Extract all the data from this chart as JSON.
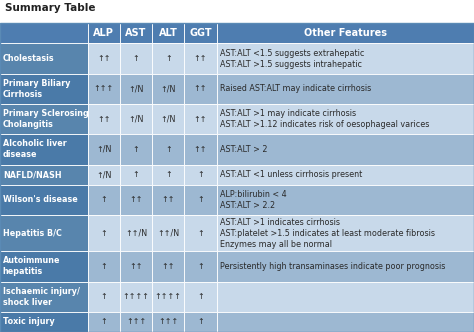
{
  "title": "Summary Table",
  "headers": [
    "",
    "ALP",
    "AST",
    "ALT",
    "GGT",
    "Other Features"
  ],
  "rows": [
    [
      "Cholestasis",
      "↑↑",
      "↑",
      "↑",
      "↑↑",
      "AST:ALT <1.5 suggests extrahepatic\nAST:ALT >1.5 suggests intrahepatic"
    ],
    [
      "Primary Biliary\nCirrhosis",
      "↑↑↑",
      "↑/N",
      "↑/N",
      "↑↑",
      "Raised AST:ALT may indicate cirrhosis"
    ],
    [
      "Primary Sclerosing\nCholangitis",
      "↑↑",
      "↑/N",
      "↑/N",
      "↑↑",
      "AST:ALT >1 may indicate cirrhosis\nAST:ALT >1.12 indicates risk of oesophageal varices"
    ],
    [
      "Alcoholic liver\ndisease",
      "↑/N",
      "↑",
      "↑",
      "↑↑",
      "AST:ALT > 2"
    ],
    [
      "NAFLD/NASH",
      "↑/N",
      "↑",
      "↑",
      "↑",
      "AST:ALT <1 unless cirrhosis present"
    ],
    [
      "Wilson's disease",
      "↑",
      "↑↑",
      "↑↑",
      "↑",
      "ALP:bilirubin < 4\nAST:ALT > 2.2"
    ],
    [
      "Hepatitis B/C",
      "↑",
      "↑↑/N",
      "↑↑/N",
      "↑",
      "AST:ALT >1 indicates cirrhosis\nAST:platelet >1.5 indicates at least moderate fibrosis\nEnzymes may all be normal"
    ],
    [
      "Autoimmune\nhepatitis",
      "↑",
      "↑↑",
      "↑↑",
      "↑",
      "Persistently high transaminases indicate poor prognosis"
    ],
    [
      "Ischaemic injury/\nshock liver",
      "↑",
      "↑↑↑↑",
      "↑↑↑↑",
      "↑",
      ""
    ],
    [
      "Toxic injury",
      "↑",
      "↑↑↑",
      "↑↑↑",
      "↑",
      ""
    ]
  ],
  "fig_bg": "#ffffff",
  "header_bg": "#4e7db0",
  "header_text_color": "#ffffff",
  "row_bg_even": "#c8d9ea",
  "row_bg_odd": "#9db8d2",
  "col0_bg_even": "#5885ad",
  "col0_bg_odd": "#4a7aa8",
  "col0_text": "#ffffff",
  "body_text_color": "#2a2a2a",
  "title_fontsize": 7.5,
  "header_fontsize": 7,
  "cell_fontsize": 5.8,
  "figsize": [
    4.74,
    3.32
  ],
  "dpi": 100
}
